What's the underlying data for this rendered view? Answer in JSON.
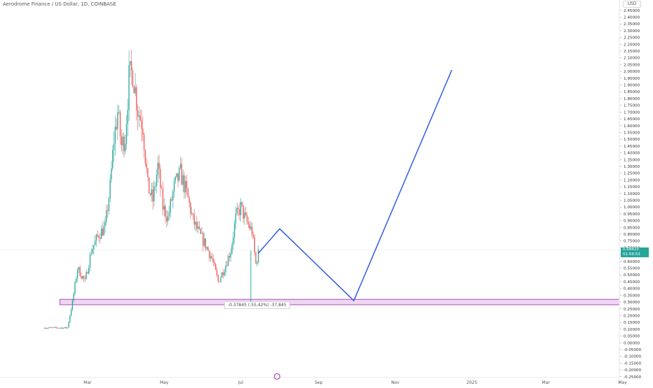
{
  "header": {
    "title": "Aerodrome Finance / US Dollar, 1D, COINBASE",
    "currency": "USD"
  },
  "price_badge": {
    "price": "0.68423",
    "sub": "01:59:53"
  },
  "measure": {
    "label": "-0.37845 (-55.42%) -37,845"
  },
  "colors": {
    "up": "#26a69a",
    "down": "#ef5350",
    "projection": "#2f5ee0",
    "zone_fill": "#e9c3f0",
    "zone_border": "#9c27b0",
    "badge": "#26a69a"
  },
  "chart_data": {
    "type": "candlestick",
    "title": "Aerodrome Finance / US Dollar, 1D, COINBASE",
    "y_axis": {
      "min": -0.25,
      "max": 2.45,
      "step": 0.05,
      "position": "right",
      "tick_labels": [
        "2.45000",
        "2.40000",
        "2.35000",
        "2.30000",
        "2.25000",
        "2.20000",
        "2.15000",
        "2.10000",
        "2.05000",
        "2.00000",
        "1.95000",
        "1.90000",
        "1.85000",
        "1.80000",
        "1.75000",
        "1.70000",
        "1.65000",
        "1.60000",
        "1.55000",
        "1.50000",
        "1.45000",
        "1.40000",
        "1.35000",
        "1.30000",
        "1.25000",
        "1.20000",
        "1.15000",
        "1.10000",
        "1.05000",
        "1.00000",
        "0.95000",
        "0.90000",
        "0.85000",
        "0.80000",
        "0.75000",
        "0.70000",
        "0.65000",
        "0.60000",
        "0.55000",
        "0.50000",
        "0.45000",
        "0.40000",
        "0.35000",
        "0.30000",
        "0.25000",
        "0.20000",
        "0.15000",
        "0.10000",
        "0.05000",
        "0.00000",
        "-0.05000",
        "-0.10000",
        "-0.15000",
        "-0.20000",
        "-0.25000"
      ]
    },
    "x_axis": {
      "labels": [
        "Mar",
        "May",
        "Jul",
        "Sep",
        "Nov",
        "2025",
        "Mar",
        "May"
      ],
      "label_days": [
        34,
        95,
        156,
        218,
        279,
        340,
        399,
        460
      ]
    },
    "candle_waypoints": [
      {
        "day": 0,
        "close": 0.11
      },
      {
        "day": 18,
        "close": 0.11
      },
      {
        "day": 22,
        "close": 0.3
      },
      {
        "day": 26,
        "close": 0.55
      },
      {
        "day": 32,
        "close": 0.45
      },
      {
        "day": 37,
        "close": 0.68
      },
      {
        "day": 43,
        "close": 0.8
      },
      {
        "day": 48,
        "close": 0.85
      },
      {
        "day": 52,
        "close": 1.15
      },
      {
        "day": 55,
        "close": 1.5
      },
      {
        "day": 58,
        "close": 1.7
      },
      {
        "day": 61,
        "close": 1.45
      },
      {
        "day": 64,
        "close": 1.52
      },
      {
        "day": 67,
        "close": 1.95
      },
      {
        "day": 70,
        "close": 2.0
      },
      {
        "day": 74,
        "close": 1.72
      },
      {
        "day": 78,
        "close": 1.6
      },
      {
        "day": 82,
        "close": 1.15
      },
      {
        "day": 86,
        "close": 1.05
      },
      {
        "day": 90,
        "close": 1.3
      },
      {
        "day": 94,
        "close": 1.0
      },
      {
        "day": 98,
        "close": 0.92
      },
      {
        "day": 103,
        "close": 1.15
      },
      {
        "day": 108,
        "close": 1.25
      },
      {
        "day": 113,
        "close": 1.1
      },
      {
        "day": 118,
        "close": 0.9
      },
      {
        "day": 123,
        "close": 0.8
      },
      {
        "day": 128,
        "close": 0.72
      },
      {
        "day": 133,
        "close": 0.62
      },
      {
        "day": 138,
        "close": 0.45
      },
      {
        "day": 143,
        "close": 0.55
      },
      {
        "day": 148,
        "close": 0.68
      },
      {
        "day": 152,
        "close": 0.92
      },
      {
        "day": 156,
        "close": 1.0
      },
      {
        "day": 160,
        "close": 0.9
      },
      {
        "day": 165,
        "close": 0.82
      },
      {
        "day": 168,
        "close": 0.58
      },
      {
        "day": 170,
        "close": 0.66
      }
    ],
    "measure_wick": {
      "day": 164,
      "high": 0.68,
      "low": 0.3
    },
    "support_zone": {
      "from_day": 12,
      "to_day": 467,
      "low": 0.28,
      "high": 0.32
    },
    "projection_path": [
      {
        "day": 170,
        "value": 0.66
      },
      {
        "day": 187,
        "value": 0.84
      },
      {
        "day": 246,
        "value": 0.31
      },
      {
        "day": 324,
        "value": 2.01
      }
    ]
  }
}
